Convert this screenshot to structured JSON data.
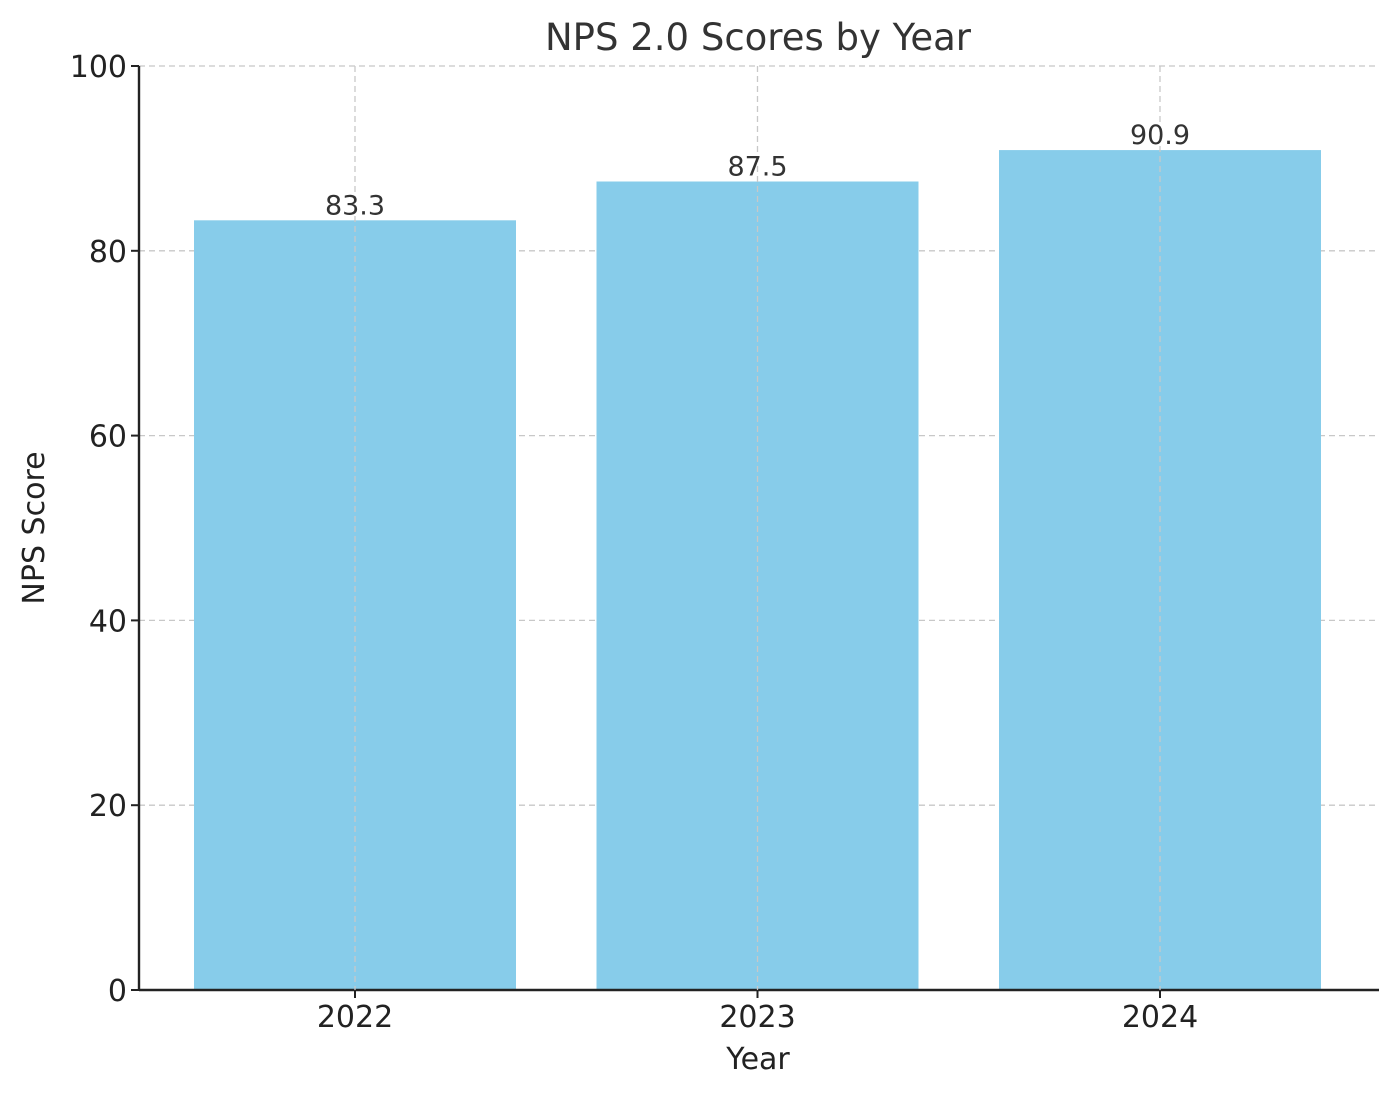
{
  "chart_data": {
    "type": "bar",
    "title": "NPS 2.0 Scores by Year",
    "xlabel": "Year",
    "ylabel": "NPS Score",
    "categories": [
      "2022",
      "2023",
      "2024"
    ],
    "values": [
      83.3,
      87.5,
      90.9
    ],
    "value_labels": [
      "83.3",
      "87.5",
      "90.9"
    ],
    "ylim": [
      0,
      100
    ],
    "yticks": [
      0,
      20,
      40,
      60,
      80,
      100
    ],
    "grid": true,
    "legend": "none",
    "bar_color": "#87CCEA"
  }
}
